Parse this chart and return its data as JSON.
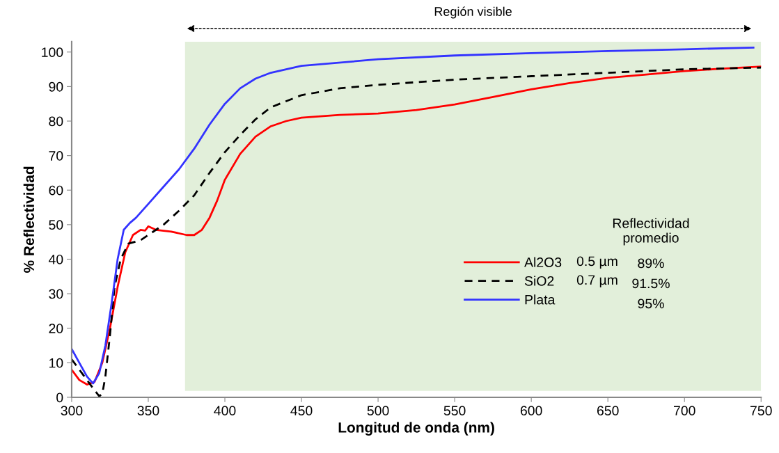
{
  "chart_data": {
    "type": "line",
    "xlabel": "Longitud de onda (nm)",
    "ylabel": "% Reflectividad",
    "xlim": [
      300,
      750
    ],
    "ylim": [
      0,
      103
    ],
    "xticks": [
      300,
      350,
      400,
      450,
      500,
      550,
      600,
      650,
      700,
      750
    ],
    "yticks": [
      0,
      10,
      20,
      30,
      40,
      50,
      60,
      70,
      80,
      90,
      100
    ],
    "grid": false,
    "legend": "bottom right",
    "marker": "none",
    "bands": [
      {
        "axis": "x",
        "from": 374,
        "to": 750,
        "label": "Región visible",
        "color": "#e2efda"
      }
    ],
    "annotations": [
      "Reflectividad\npromedio",
      "0.5 µm",
      "0.7 µm",
      "89%",
      "91.5%",
      "95%"
    ],
    "series": [
      {
        "name": "Al2O3",
        "color": "#ff0000",
        "line_style": "solid",
        "x": [
          300,
          305,
          310,
          315,
          320,
          325,
          330,
          335,
          340,
          345,
          348,
          350,
          355,
          365,
          375,
          380,
          385,
          390,
          395,
          400,
          410,
          420,
          430,
          440,
          450,
          475,
          500,
          525,
          550,
          575,
          600,
          625,
          650,
          675,
          700,
          725,
          750
        ],
        "values": [
          8,
          5,
          3.7,
          4.5,
          10,
          20,
          32,
          42,
          47,
          48.5,
          48.3,
          49.5,
          48.5,
          48,
          47,
          47,
          48.5,
          52,
          57,
          63,
          70.5,
          75.5,
          78.5,
          80,
          81,
          81.8,
          82.2,
          83.2,
          84.8,
          87,
          89.2,
          91,
          92.5,
          93.5,
          94.5,
          95.2,
          95.8
        ]
      },
      {
        "name": "SiO2",
        "color": "#000000",
        "line_style": "dashed",
        "x": [
          300,
          305,
          310,
          315,
          318,
          320,
          322,
          325,
          328,
          332,
          337,
          345,
          350,
          360,
          370,
          380,
          390,
          400,
          410,
          420,
          430,
          450,
          475,
          500,
          550,
          600,
          650,
          700,
          750
        ],
        "values": [
          11,
          8,
          5,
          2,
          0.3,
          1,
          6,
          18,
          32,
          40,
          44.5,
          45.5,
          47,
          50,
          54,
          58.5,
          65,
          71,
          76,
          80.5,
          84,
          87.5,
          89.5,
          90.5,
          92,
          93,
          94,
          95,
          95.5
        ]
      },
      {
        "name": "Plata",
        "color": "#3333ff",
        "line_style": "solid",
        "x": [
          300,
          305,
          310,
          314,
          318,
          322,
          326,
          330,
          334,
          338,
          342,
          350,
          360,
          370,
          380,
          390,
          400,
          410,
          420,
          430,
          450,
          500,
          550,
          600,
          650,
          700,
          745
        ],
        "values": [
          14,
          10,
          6,
          4,
          7,
          15,
          27,
          40,
          48.5,
          50.5,
          52,
          56,
          61,
          66,
          72,
          79,
          85,
          89.5,
          92.3,
          94,
          96,
          97.9,
          99,
          99.7,
          100.3,
          100.8,
          101.3
        ]
      }
    ]
  }
}
